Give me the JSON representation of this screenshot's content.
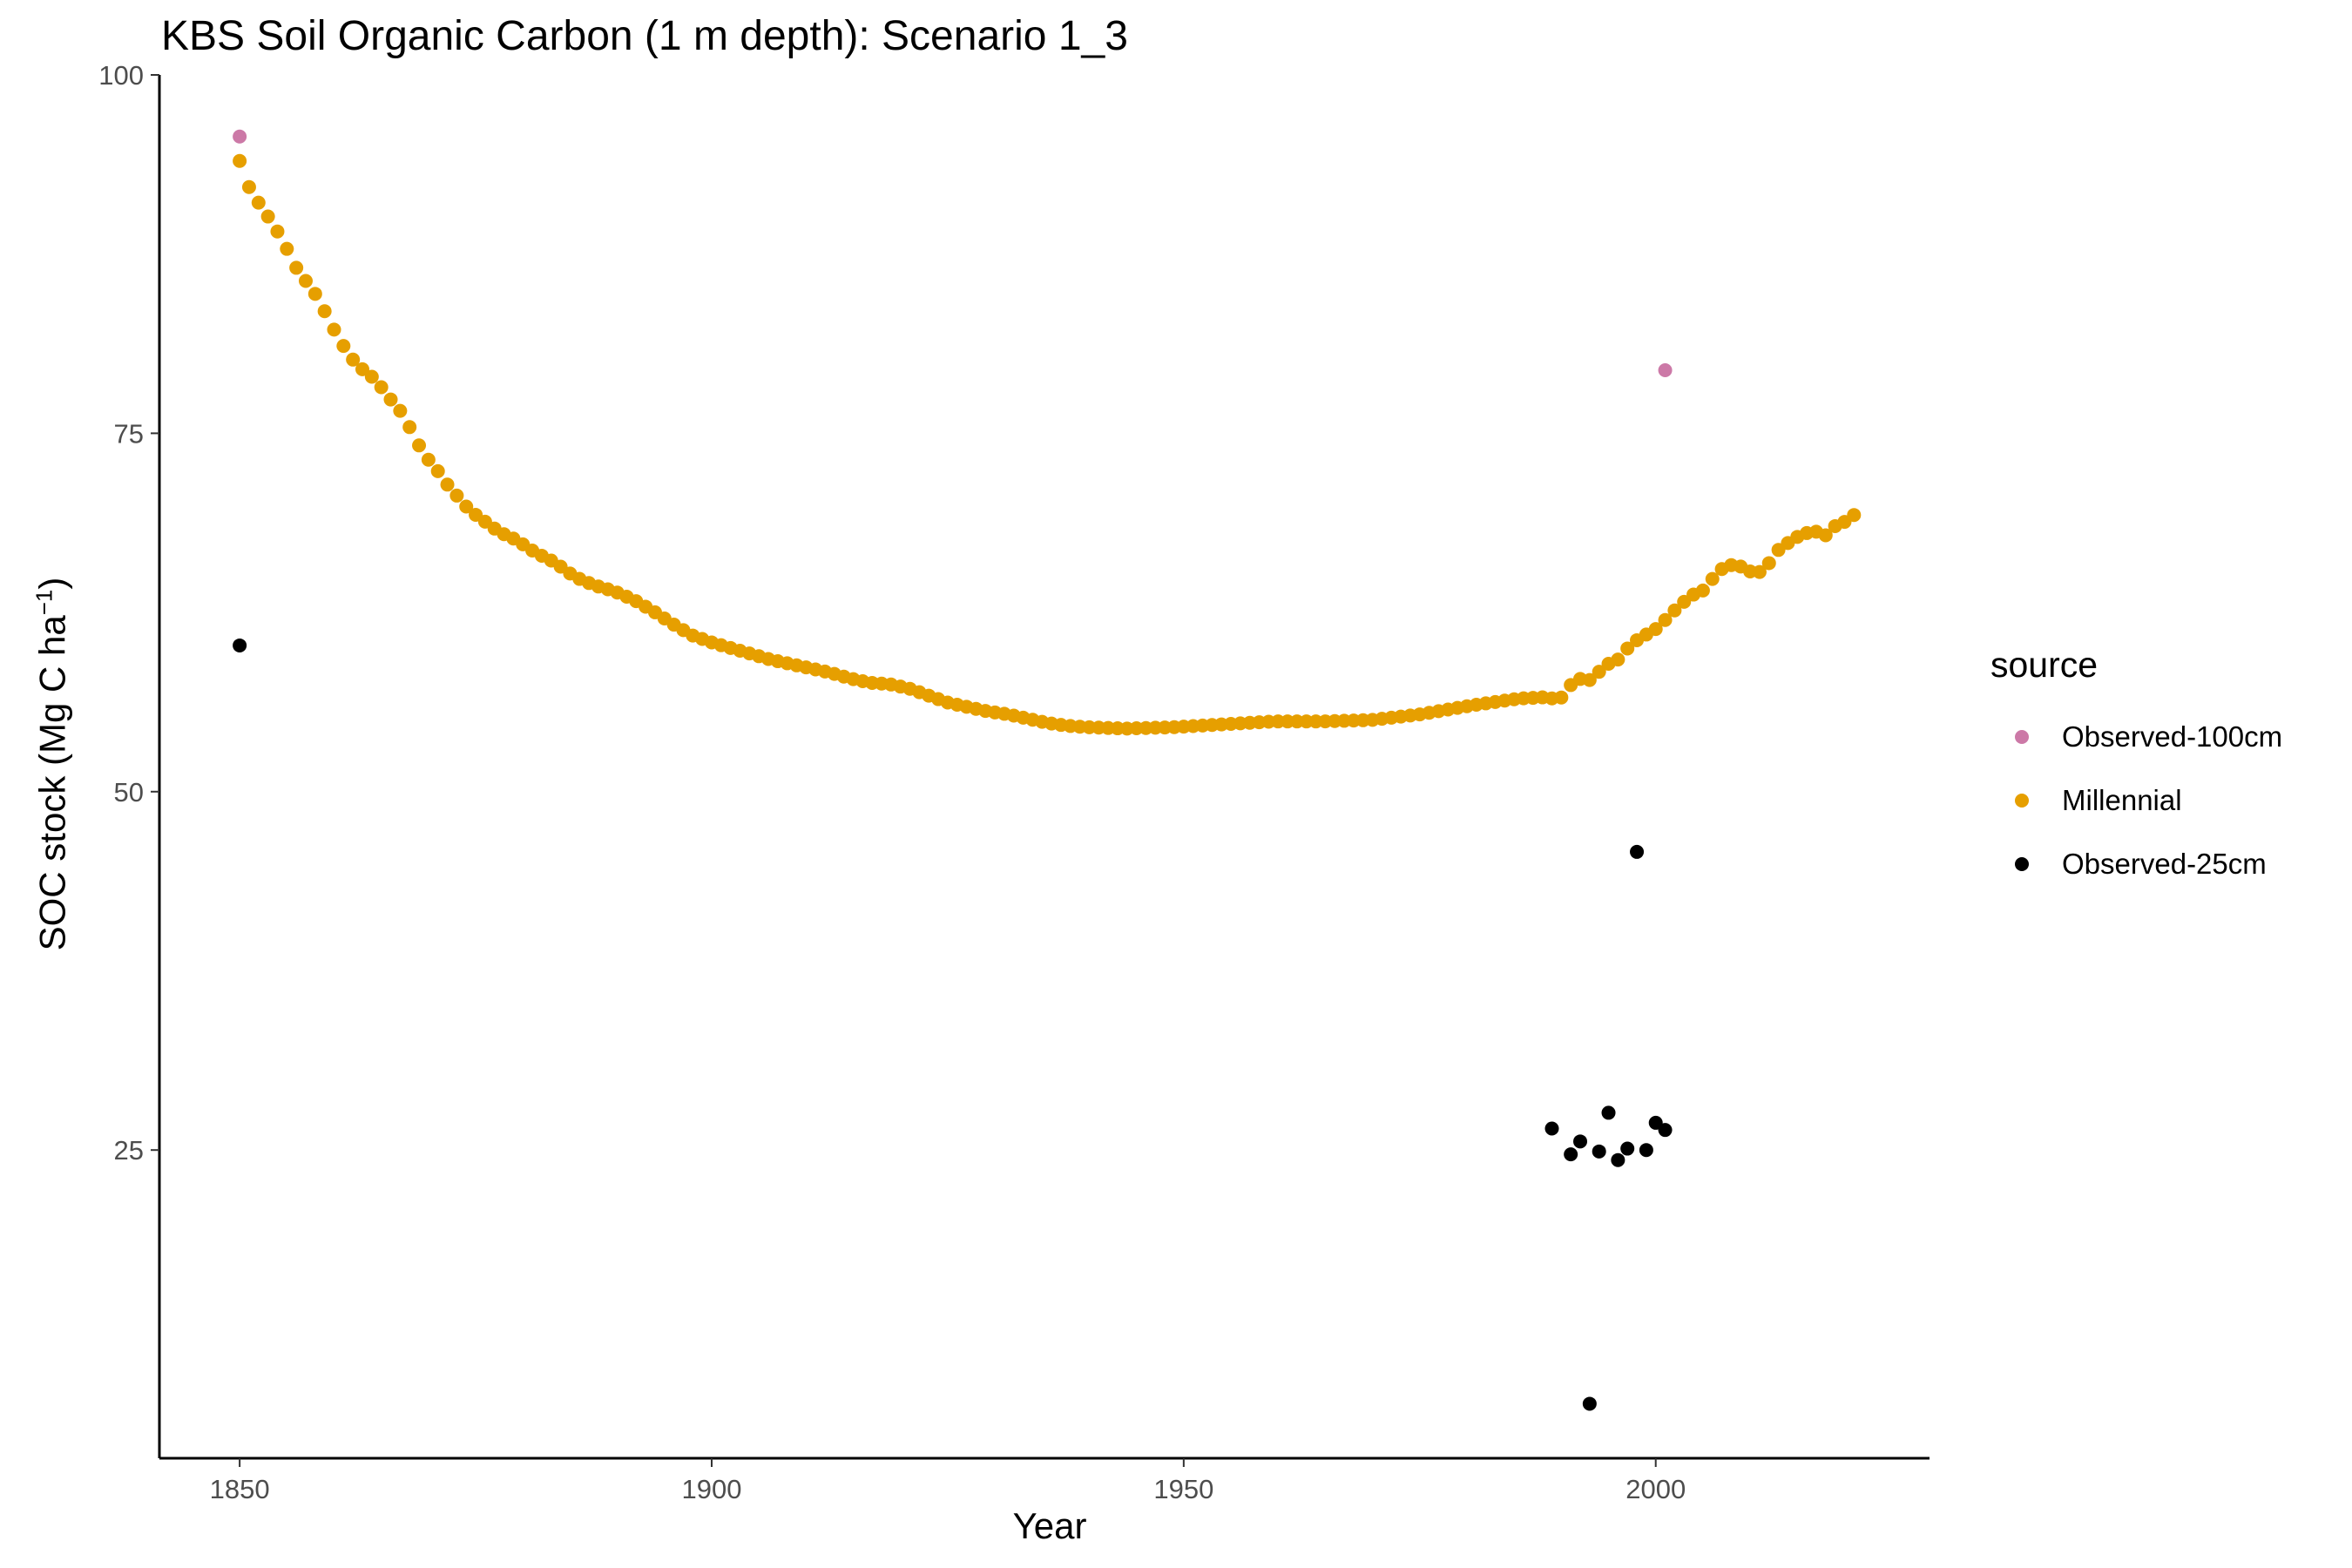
{
  "chart_data": {
    "type": "scatter",
    "title": "KBS Soil Organic Carbon (1 m depth): Scenario  1_3",
    "xlabel": "Year",
    "ylabel": {
      "text": "SOC stock (Mg C ha",
      "sup": "−1",
      "close": ")"
    },
    "xlim": [
      1841.5,
      2029
    ],
    "ylim": [
      3.5,
      100
    ],
    "xticks": [
      1850,
      1900,
      1950,
      2000
    ],
    "yticks": [
      25,
      50,
      75,
      100
    ],
    "grid": false,
    "legend": {
      "title": "source",
      "placement": "right",
      "entries": [
        "Observed-100cm",
        "Millennial",
        "Observed-25cm"
      ]
    },
    "series": [
      {
        "name": "Observed-100cm",
        "color": "#CC79A7",
        "points": [
          [
            1850,
            95.7
          ],
          [
            2001,
            79.4
          ]
        ]
      },
      {
        "name": "Millennial",
        "color": "#E69F00",
        "anchors": [
          [
            1850,
            94.0
          ],
          [
            1851,
            92.1
          ],
          [
            1852,
            91.0
          ],
          [
            1853,
            90.0
          ],
          [
            1854,
            88.9
          ],
          [
            1855,
            87.6
          ],
          [
            1856,
            86.2
          ],
          [
            1857,
            85.4
          ],
          [
            1858,
            84.4
          ],
          [
            1859,
            83.0
          ],
          [
            1860,
            81.7
          ],
          [
            1861,
            80.6
          ],
          [
            1862,
            79.7
          ],
          [
            1863,
            79.2
          ],
          [
            1864,
            78.6
          ],
          [
            1865,
            77.6
          ],
          [
            1866,
            76.9
          ],
          [
            1867,
            75.8
          ],
          [
            1868,
            74.4
          ],
          [
            1869,
            73.3
          ],
          [
            1870,
            72.5
          ],
          [
            1871,
            71.5
          ],
          [
            1872,
            70.7
          ],
          [
            1873,
            69.9
          ],
          [
            1874,
            69.3
          ],
          [
            1875,
            68.8
          ],
          [
            1876,
            68.3
          ],
          [
            1877,
            67.9
          ],
          [
            1878,
            67.6
          ],
          [
            1880,
            66.7
          ],
          [
            1882,
            66.0
          ],
          [
            1884,
            65.0
          ],
          [
            1886,
            64.4
          ],
          [
            1888,
            64.0
          ],
          [
            1890,
            63.4
          ],
          [
            1892,
            62.6
          ],
          [
            1894,
            61.7
          ],
          [
            1896,
            60.9
          ],
          [
            1898,
            60.4
          ],
          [
            1900,
            60.0
          ],
          [
            1902,
            59.6
          ],
          [
            1904,
            59.2
          ],
          [
            1906,
            58.9
          ],
          [
            1908,
            58.6
          ],
          [
            1910,
            58.3
          ],
          [
            1912,
            57.9
          ],
          [
            1914,
            57.6
          ],
          [
            1916,
            57.5
          ],
          [
            1918,
            57.2
          ],
          [
            1920,
            56.7
          ],
          [
            1922,
            56.2
          ],
          [
            1924,
            55.9
          ],
          [
            1926,
            55.6
          ],
          [
            1928,
            55.4
          ],
          [
            1930,
            55.1
          ],
          [
            1932,
            54.8
          ],
          [
            1934,
            54.6
          ],
          [
            1936,
            54.5
          ],
          [
            1940,
            54.4
          ],
          [
            1945,
            54.5
          ],
          [
            1950,
            54.7
          ],
          [
            1955,
            54.9
          ],
          [
            1960,
            54.9
          ],
          [
            1965,
            55.0
          ],
          [
            1970,
            55.4
          ],
          [
            1975,
            56.0
          ],
          [
            1980,
            56.5
          ],
          [
            1983,
            56.6
          ],
          [
            1984,
            56.3
          ],
          [
            1985,
            57.3
          ],
          [
            1986,
            57.9
          ],
          [
            1987,
            57.7
          ],
          [
            1988,
            58.3
          ],
          [
            1989,
            58.9
          ],
          [
            1990,
            59.2
          ],
          [
            1991,
            60.0
          ],
          [
            1992,
            60.6
          ],
          [
            1993,
            61.0
          ],
          [
            1994,
            61.4
          ],
          [
            1995,
            62.1
          ],
          [
            1996,
            62.8
          ],
          [
            1997,
            63.4
          ],
          [
            1998,
            63.9
          ],
          [
            1999,
            64.1
          ],
          [
            2000,
            65.3
          ],
          [
            2001,
            65.7
          ],
          [
            2002,
            65.9
          ],
          [
            2003,
            65.5
          ],
          [
            2004,
            65.2
          ],
          [
            2005,
            65.5
          ],
          [
            2006,
            66.7
          ],
          [
            2007,
            67.2
          ],
          [
            2008,
            67.7
          ],
          [
            2009,
            68.0
          ],
          [
            2010,
            68.2
          ],
          [
            2011,
            67.8
          ],
          [
            2012,
            68.5
          ],
          [
            2013,
            68.8
          ],
          [
            2014,
            69.3
          ]
        ],
        "x_range": [
          1850,
          2021
        ],
        "x_step": 1
      },
      {
        "name": "Observed-25cm",
        "color": "#000000",
        "points": [
          [
            1850,
            60.2
          ],
          [
            1989,
            26.5
          ],
          [
            1991,
            24.7
          ],
          [
            1992,
            25.6
          ],
          [
            1993,
            7.3
          ],
          [
            1994,
            24.9
          ],
          [
            1995,
            27.6
          ],
          [
            1996,
            24.3
          ],
          [
            1997,
            25.1
          ],
          [
            1998,
            45.8
          ],
          [
            1999,
            25.0
          ],
          [
            2000,
            26.9
          ],
          [
            2001,
            26.4
          ]
        ]
      }
    ]
  }
}
